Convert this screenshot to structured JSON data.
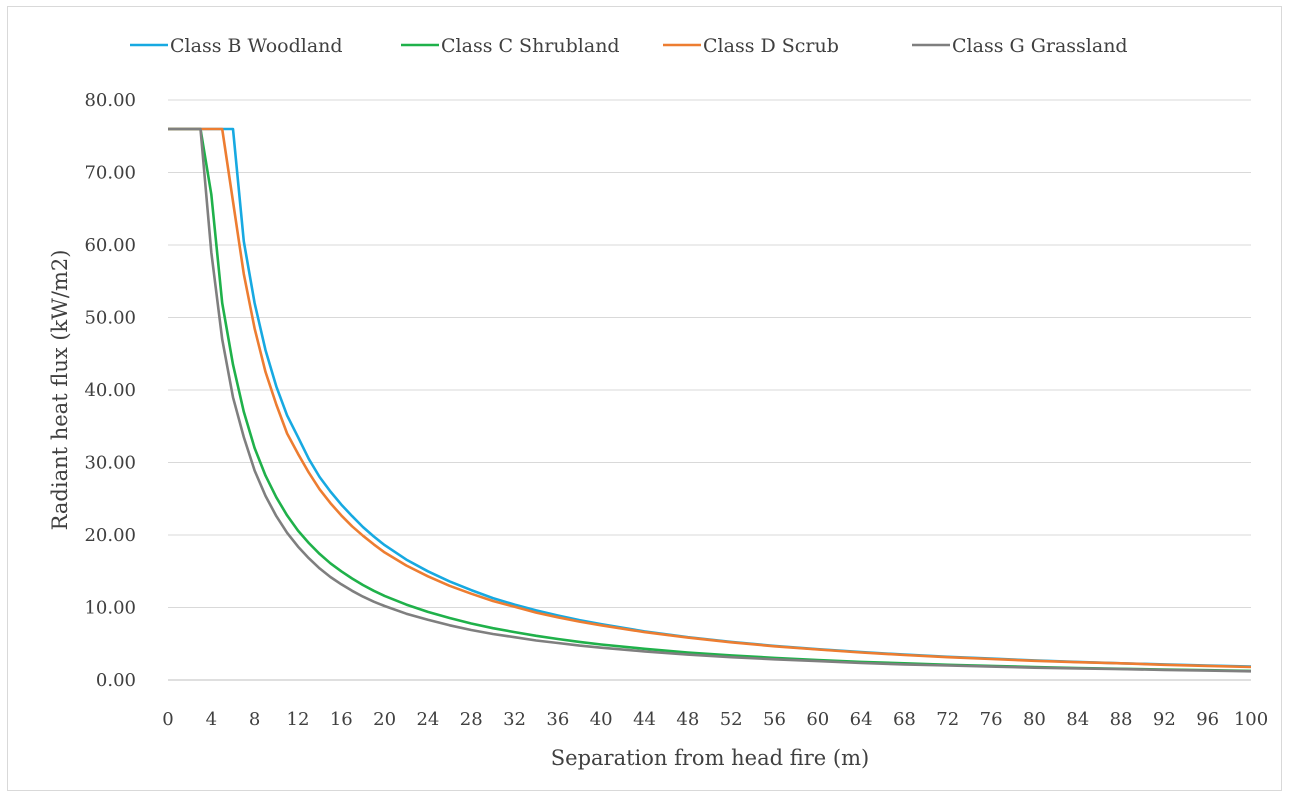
{
  "chart_data": {
    "type": "line",
    "title": "",
    "xlabel": "Separation from head fire (m)",
    "ylabel": "Radiant heat flux (kW/m2)",
    "xlim": [
      0,
      100
    ],
    "ylim": [
      0,
      80
    ],
    "x_ticks": [
      "0",
      "4",
      "8",
      "12",
      "16",
      "20",
      "24",
      "28",
      "32",
      "36",
      "40",
      "44",
      "48",
      "52",
      "56",
      "60",
      "64",
      "68",
      "72",
      "76",
      "80",
      "84",
      "88",
      "92",
      "96",
      "100"
    ],
    "y_ticks": [
      "0.00",
      "10.00",
      "20.00",
      "30.00",
      "40.00",
      "50.00",
      "60.00",
      "70.00",
      "80.00"
    ],
    "grid": "horizontal",
    "legend_position": "top",
    "x": [
      0,
      1,
      2,
      3,
      4,
      5,
      6,
      7,
      8,
      9,
      10,
      11,
      12,
      13,
      14,
      15,
      16,
      17,
      18,
      19,
      20,
      22,
      24,
      26,
      28,
      30,
      32,
      34,
      36,
      38,
      40,
      44,
      48,
      52,
      56,
      60,
      64,
      68,
      72,
      76,
      80,
      84,
      88,
      92,
      96,
      100
    ],
    "series": [
      {
        "name": "Class B Woodland",
        "color": "#17a9e1",
        "values": [
          76,
          76,
          76,
          76,
          76,
          76,
          76,
          60.5,
          52,
          45.5,
          40.5,
          36.5,
          33.5,
          30.5,
          28,
          26,
          24.2,
          22.6,
          21.1,
          19.8,
          18.6,
          16.6,
          15,
          13.6,
          12.4,
          11.3,
          10.4,
          9.6,
          8.9,
          8.25,
          7.7,
          6.7,
          5.9,
          5.25,
          4.7,
          4.25,
          3.85,
          3.5,
          3.2,
          2.95,
          2.7,
          2.5,
          2.3,
          2.15,
          2.0,
          1.85
        ]
      },
      {
        "name": "Class C Shrubland",
        "color": "#1fb14a",
        "values": [
          76,
          76,
          76,
          76,
          67,
          52,
          43.5,
          37,
          32,
          28.2,
          25.2,
          22.7,
          20.6,
          18.9,
          17.4,
          16.1,
          15,
          14,
          13.1,
          12.3,
          11.6,
          10.4,
          9.4,
          8.55,
          7.8,
          7.15,
          6.6,
          6.1,
          5.65,
          5.25,
          4.9,
          4.3,
          3.8,
          3.4,
          3.05,
          2.75,
          2.5,
          2.3,
          2.1,
          1.95,
          1.8,
          1.65,
          1.55,
          1.45,
          1.35,
          1.25
        ]
      },
      {
        "name": "Class D Scrub",
        "color": "#ed7d31",
        "values": [
          76,
          76,
          76,
          76,
          76,
          76,
          66,
          56,
          48.5,
          42.5,
          38,
          34,
          31.2,
          28.6,
          26.3,
          24.4,
          22.7,
          21.2,
          19.9,
          18.7,
          17.6,
          15.8,
          14.3,
          13,
          11.9,
          10.9,
          10.1,
          9.3,
          8.65,
          8.05,
          7.55,
          6.6,
          5.85,
          5.2,
          4.65,
          4.2,
          3.8,
          3.45,
          3.15,
          2.9,
          2.65,
          2.45,
          2.3,
          2.1,
          1.95,
          1.8
        ]
      },
      {
        "name": "Class G Grassland",
        "color": "#7f7f7f",
        "values": [
          76,
          76,
          76,
          76,
          59,
          47,
          39,
          33.5,
          28.9,
          25.4,
          22.6,
          20.3,
          18.4,
          16.8,
          15.4,
          14.2,
          13.2,
          12.3,
          11.5,
          10.8,
          10.2,
          9.15,
          8.3,
          7.55,
          6.9,
          6.35,
          5.9,
          5.45,
          5.1,
          4.75,
          4.45,
          3.95,
          3.5,
          3.15,
          2.85,
          2.6,
          2.35,
          2.15,
          2,
          1.85,
          1.7,
          1.6,
          1.5,
          1.4,
          1.3,
          1.2
        ]
      }
    ]
  }
}
